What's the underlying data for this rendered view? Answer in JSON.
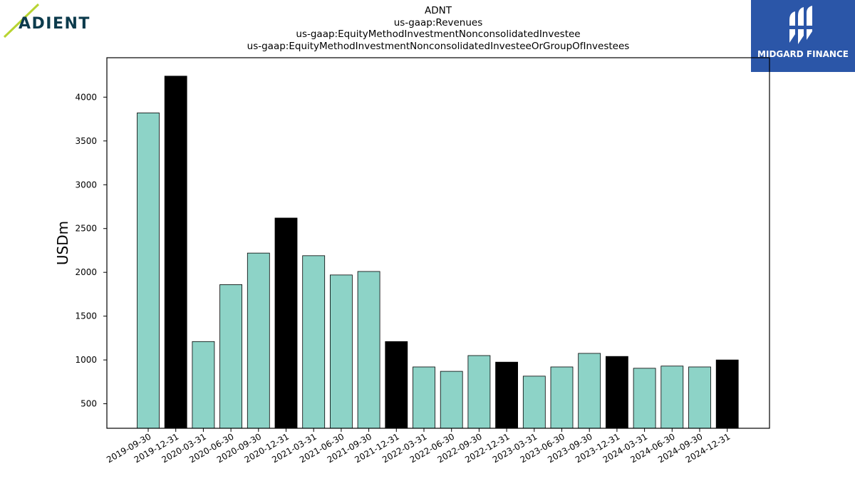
{
  "brand": {
    "left_logo_text": "ADIENT",
    "right_logo_text": "MIDGARD FINANCE"
  },
  "chart_data": {
    "type": "bar",
    "title_lines": [
      "ADNT",
      "us-gaap:Revenues",
      "us-gaap:EquityMethodInvestmentNonconsolidatedInvestee",
      "us-gaap:EquityMethodInvestmentNonconsolidatedInvesteeOrGroupOfInvestees"
    ],
    "ylabel": "USDm",
    "xlabel": "",
    "ylim": [
      220,
      4450
    ],
    "yticks": [
      500,
      1000,
      1500,
      2000,
      2500,
      3000,
      3500,
      4000
    ],
    "categories": [
      "2019-09-30",
      "2019-12-31",
      "2020-03-31",
      "2020-06-30",
      "2020-09-30",
      "2020-12-31",
      "2021-03-31",
      "2021-06-30",
      "2021-09-30",
      "2021-12-31",
      "2022-03-31",
      "2022-06-30",
      "2022-09-30",
      "2022-12-31",
      "2023-03-31",
      "2023-06-30",
      "2023-09-30",
      "2023-12-31",
      "2024-03-31",
      "2024-06-30",
      "2024-09-30",
      "2024-12-31"
    ],
    "values": [
      3820,
      4240,
      1210,
      1860,
      2220,
      2620,
      2190,
      1970,
      2010,
      1210,
      920,
      870,
      1050,
      975,
      815,
      920,
      1075,
      1040,
      905,
      930,
      920,
      1000
    ],
    "bar_colors": [
      "#8dd3c7",
      "#000000",
      "#8dd3c7",
      "#8dd3c7",
      "#8dd3c7",
      "#000000",
      "#8dd3c7",
      "#8dd3c7",
      "#8dd3c7",
      "#000000",
      "#8dd3c7",
      "#8dd3c7",
      "#8dd3c7",
      "#000000",
      "#8dd3c7",
      "#8dd3c7",
      "#8dd3c7",
      "#000000",
      "#8dd3c7",
      "#8dd3c7",
      "#8dd3c7",
      "#000000"
    ],
    "grid": false,
    "legend": "none"
  }
}
